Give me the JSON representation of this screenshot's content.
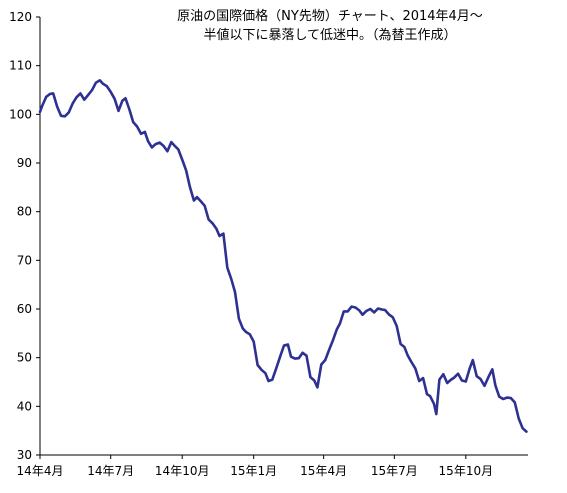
{
  "chart_data": {
    "type": "line",
    "title_line1": "原油の国際価格（NY先物）チャート、2014年4月～",
    "title_line2": "半値以下に暴落して低迷中。（為替王作成）",
    "xlabel": "",
    "ylabel": "",
    "ylim": [
      30,
      120
    ],
    "yticks": [
      120,
      110,
      100,
      90,
      80,
      70,
      60,
      50,
      40,
      30
    ],
    "xlim": [
      "2014-04-01",
      "2015-12-20"
    ],
    "xticks": [
      {
        "date": "2014-04-01",
        "label": "14年4月"
      },
      {
        "date": "2014-07-01",
        "label": "14年7月"
      },
      {
        "date": "2014-10-01",
        "label": "14年10月"
      },
      {
        "date": "2015-01-01",
        "label": "15年1月"
      },
      {
        "date": "2015-04-01",
        "label": "15年4月"
      },
      {
        "date": "2015-07-01",
        "label": "15年7月"
      },
      {
        "date": "2015-10-01",
        "label": "15年10月"
      }
    ],
    "grid": false,
    "line_color": "#2e3192",
    "series": [
      {
        "x": [
          "2014-04-01",
          "2014-04-04",
          "2014-04-09",
          "2014-04-14",
          "2014-04-18",
          "2014-04-23",
          "2014-04-28",
          "2014-05-03",
          "2014-05-08",
          "2014-05-13",
          "2014-05-18",
          "2014-05-23",
          "2014-05-28",
          "2014-06-02",
          "2014-06-07",
          "2014-06-12",
          "2014-06-17",
          "2014-06-21",
          "2014-06-26",
          "2014-07-01",
          "2014-07-06",
          "2014-07-11",
          "2014-07-16",
          "2014-07-20",
          "2014-07-25",
          "2014-07-30",
          "2014-08-04",
          "2014-08-09",
          "2014-08-14",
          "2014-08-18",
          "2014-08-23",
          "2014-08-28",
          "2014-09-02",
          "2014-09-07",
          "2014-09-12",
          "2014-09-17",
          "2014-09-21",
          "2014-09-26",
          "2014-10-01",
          "2014-10-06",
          "2014-10-11",
          "2014-10-16",
          "2014-10-20",
          "2014-10-25",
          "2014-10-30",
          "2014-11-04",
          "2014-11-09",
          "2014-11-14",
          "2014-11-18",
          "2014-11-23",
          "2014-11-28",
          "2014-12-03",
          "2014-12-08",
          "2014-12-13",
          "2014-12-18",
          "2014-12-22",
          "2014-12-27",
          "2015-01-01",
          "2015-01-06",
          "2015-01-11",
          "2015-01-16",
          "2015-01-20",
          "2015-01-25",
          "2015-01-30",
          "2015-02-04",
          "2015-02-09",
          "2015-02-14",
          "2015-02-18",
          "2015-02-23",
          "2015-02-28",
          "2015-03-05",
          "2015-03-10",
          "2015-03-15",
          "2015-03-20",
          "2015-03-24",
          "2015-03-29",
          "2015-04-03",
          "2015-04-08",
          "2015-04-13",
          "2015-04-18",
          "2015-04-22",
          "2015-04-27",
          "2015-05-02",
          "2015-05-07",
          "2015-05-12",
          "2015-05-17",
          "2015-05-21",
          "2015-05-26",
          "2015-05-31",
          "2015-06-05",
          "2015-06-10",
          "2015-06-15",
          "2015-06-19",
          "2015-06-24",
          "2015-06-29",
          "2015-07-04",
          "2015-07-09",
          "2015-07-14",
          "2015-07-18",
          "2015-07-23",
          "2015-07-28",
          "2015-08-02",
          "2015-08-07",
          "2015-08-12",
          "2015-08-16",
          "2015-08-21",
          "2015-08-24",
          "2015-08-28",
          "2015-09-02",
          "2015-09-07",
          "2015-09-12",
          "2015-09-16",
          "2015-09-21",
          "2015-09-26",
          "2015-10-01",
          "2015-10-06",
          "2015-10-10",
          "2015-10-15",
          "2015-10-20",
          "2015-10-25",
          "2015-10-30",
          "2015-11-04",
          "2015-11-08",
          "2015-11-13",
          "2015-11-18",
          "2015-11-23",
          "2015-11-28",
          "2015-12-03",
          "2015-12-08",
          "2015-12-13",
          "2015-12-18"
        ],
        "values": [
          100.5,
          101.8,
          103.6,
          104.2,
          104.3,
          101.6,
          99.7,
          99.6,
          100.4,
          102.2,
          103.5,
          104.3,
          103.0,
          104.0,
          105.0,
          106.5,
          107.0,
          106.3,
          105.8,
          104.6,
          103.2,
          100.7,
          102.8,
          103.3,
          101.0,
          98.4,
          97.5,
          96.0,
          96.4,
          94.5,
          93.2,
          93.9,
          94.2,
          93.5,
          92.4,
          94.3,
          93.6,
          92.8,
          90.7,
          88.5,
          85.0,
          82.3,
          83.0,
          82.1,
          81.2,
          78.4,
          77.6,
          76.5,
          75.0,
          75.5,
          68.5,
          66.2,
          63.5,
          58.0,
          56.0,
          55.3,
          54.8,
          53.3,
          48.5,
          47.5,
          46.8,
          45.2,
          45.5,
          47.8,
          50.2,
          52.5,
          52.7,
          50.2,
          49.8,
          49.9,
          51.0,
          50.4,
          46.0,
          45.3,
          43.9,
          48.6,
          49.5,
          51.6,
          53.6,
          55.8,
          57.0,
          59.5,
          59.5,
          60.5,
          60.3,
          59.7,
          58.8,
          59.6,
          60.0,
          59.3,
          60.1,
          59.9,
          59.8,
          58.9,
          58.3,
          56.5,
          52.8,
          52.2,
          50.5,
          49.1,
          47.8,
          45.2,
          45.8,
          42.5,
          42.1,
          40.5,
          38.4,
          45.5,
          46.6,
          44.8,
          45.5,
          45.9,
          46.7,
          45.3,
          45.1,
          47.8,
          49.5,
          46.2,
          45.6,
          44.2,
          46.0,
          47.6,
          44.3,
          42.0,
          41.5,
          41.8,
          41.7,
          40.8,
          37.5,
          35.5,
          34.8
        ],
        "note_unused_tail_ignored": ""
      }
    ]
  }
}
